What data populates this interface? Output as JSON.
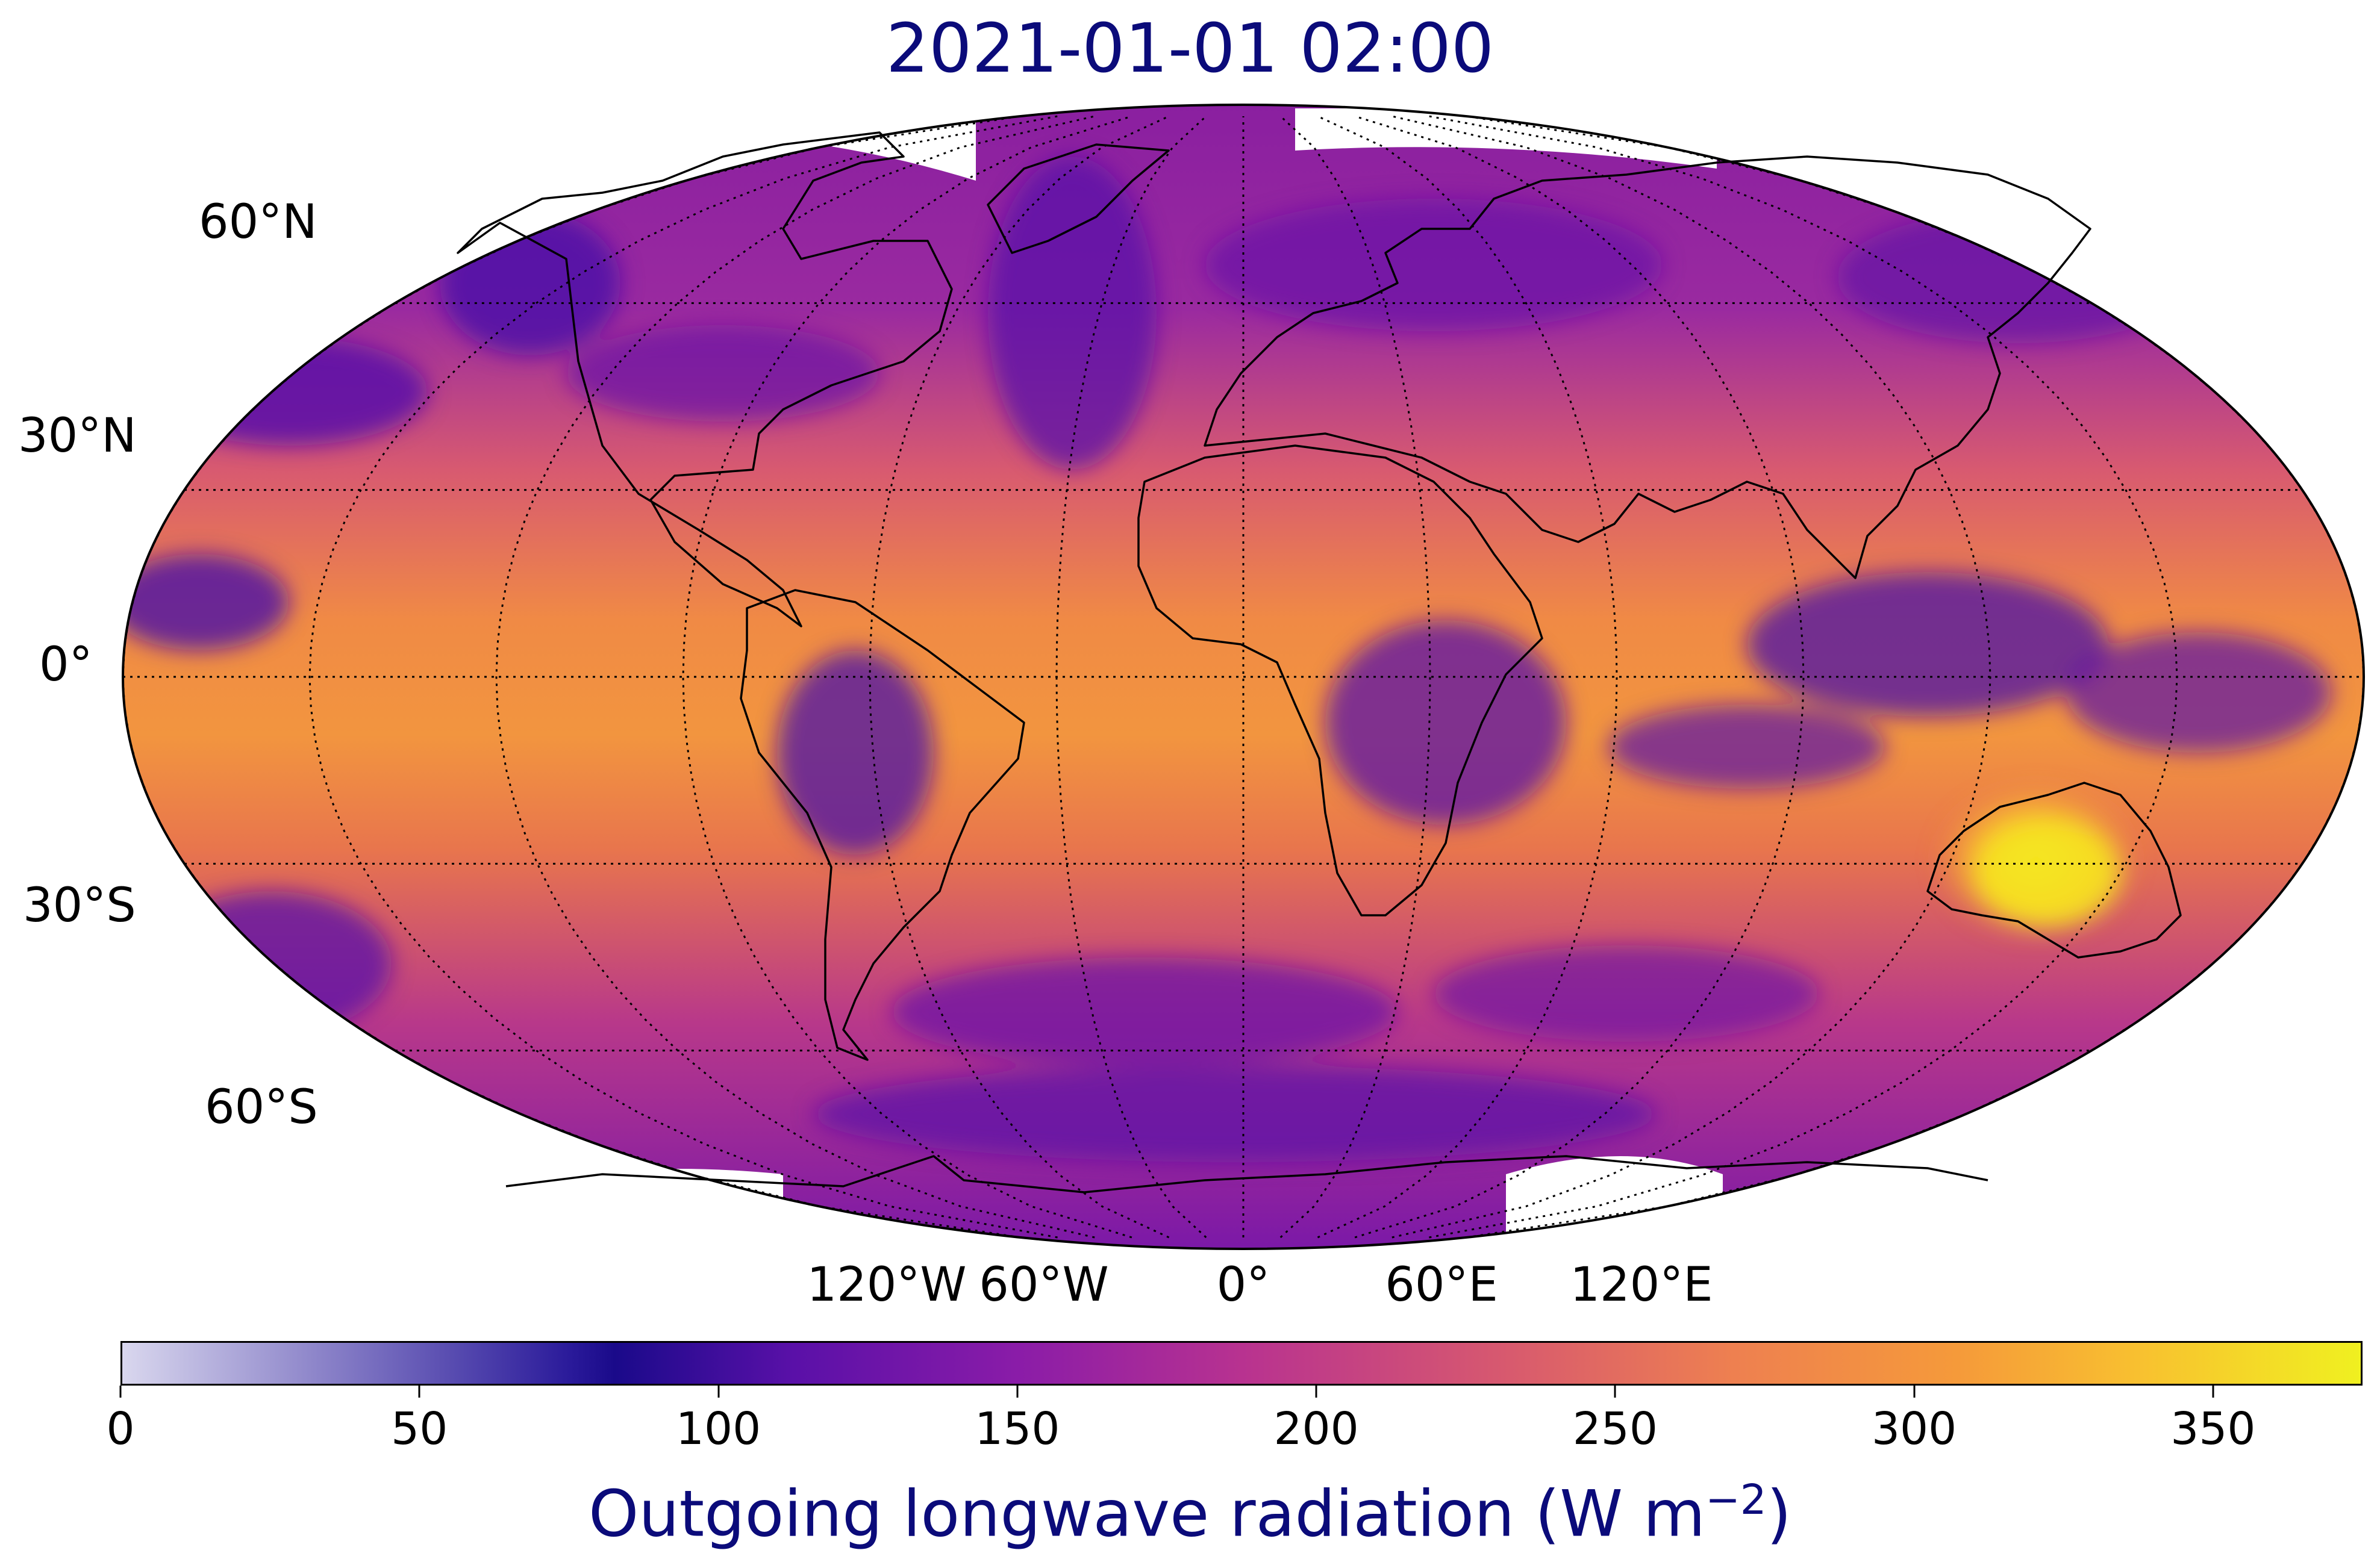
{
  "title": "2021-01-01 02:00",
  "map": {
    "projection": "Robinson",
    "variable": "Outgoing longwave radiation",
    "lat_labels": [
      "60°N",
      "30°N",
      "0°",
      "30°S",
      "60°S"
    ],
    "lon_labels": [
      "120°W",
      "60°W",
      "0°",
      "60°E",
      "120°E"
    ],
    "gridlines": "dotted",
    "coastlines": true,
    "colormap": "plasma",
    "colors": {
      "low": "#3a0a9a",
      "mid": "#a82296",
      "high": "#f59a3a",
      "max": "#f5e61f",
      "coast": "#000000",
      "missing": "#ffffff"
    },
    "features": [
      {
        "label": "Australia",
        "lon": 133,
        "lat": -25,
        "value_approx": 350
      },
      {
        "label": "Sahara",
        "lon": 10,
        "lat": 22,
        "value_approx": 290
      },
      {
        "label": "Amazon convection",
        "lon": -60,
        "lat": -5,
        "value_approx": 140
      },
      {
        "label": "Maritime continent convection",
        "lon": 120,
        "lat": 0,
        "value_approx": 140
      }
    ]
  },
  "colorbar": {
    "ticks": [
      "0",
      "50",
      "100",
      "150",
      "200",
      "250",
      "300",
      "350"
    ],
    "min": 0,
    "max": 375,
    "label_main": "Outgoing longwave radiation (W m",
    "label_sup": "−2",
    "label_end": ")"
  }
}
